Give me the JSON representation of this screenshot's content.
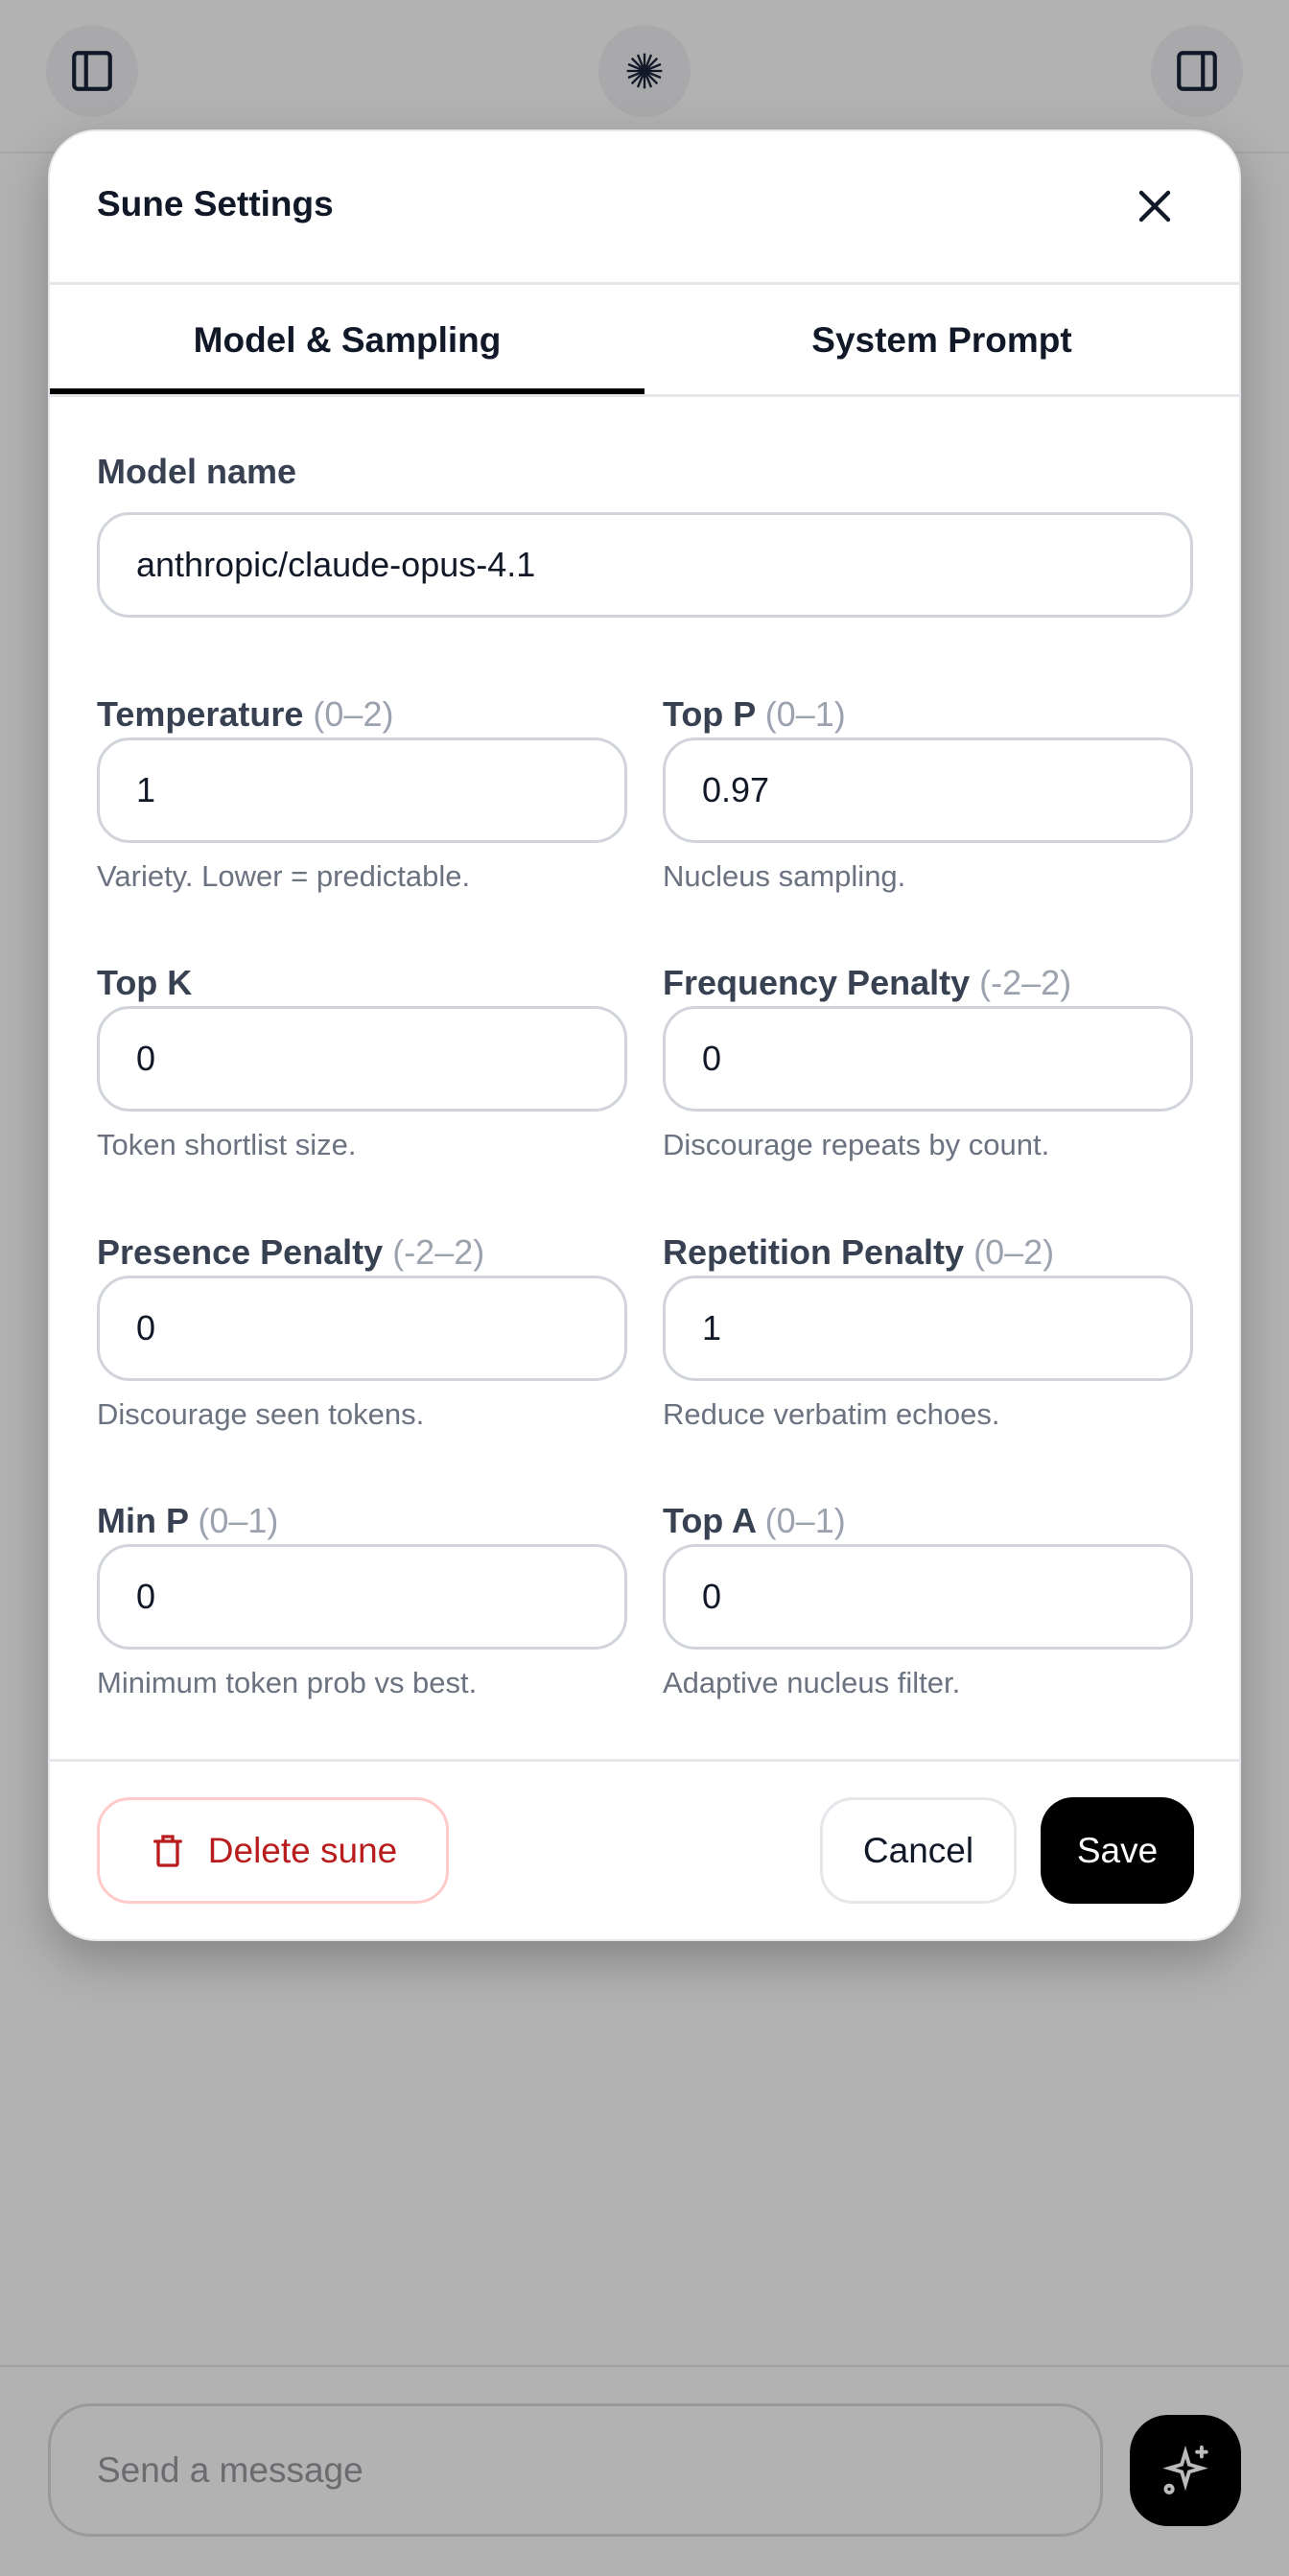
{
  "topbar": {
    "left_icon": "sidebar-left-icon",
    "center_icon": "burst-logo-icon",
    "right_icon": "sidebar-right-icon"
  },
  "modal": {
    "title": "Sune Settings",
    "tabs": [
      {
        "label": "Model & Sampling",
        "active": true
      },
      {
        "label": "System Prompt",
        "active": false
      }
    ],
    "model_name": {
      "label": "Model name",
      "value": "anthropic/claude-opus-4.1"
    },
    "fields": [
      {
        "label": "Temperature",
        "range": "(0–2)",
        "value": "1",
        "help": "Variety. Lower = predictable."
      },
      {
        "label": "Top P",
        "range": "(0–1)",
        "value": "0.97",
        "help": "Nucleus sampling."
      },
      {
        "label": "Top K",
        "range": "",
        "value": "0",
        "help": "Token shortlist size."
      },
      {
        "label": "Frequency Penalty",
        "range": "(-2–2)",
        "value": "0",
        "help": "Discourage repeats by count."
      },
      {
        "label": "Presence Penalty",
        "range": "(-2–2)",
        "value": "0",
        "help": "Discourage seen tokens."
      },
      {
        "label": "Repetition Penalty",
        "range": "(0–2)",
        "value": "1",
        "help": "Reduce verbatim echoes."
      },
      {
        "label": "Min P",
        "range": "(0–1)",
        "value": "0",
        "help": "Minimum token prob vs best."
      },
      {
        "label": "Top A",
        "range": "(0–1)",
        "value": "0",
        "help": "Adaptive nucleus filter."
      }
    ],
    "footer": {
      "delete_label": "Delete sune",
      "cancel_label": "Cancel",
      "save_label": "Save"
    }
  },
  "composer": {
    "placeholder": "Send a message"
  },
  "colors": {
    "danger": "#b91c1c",
    "primary": "#000000",
    "overlay": "#b2b2b2"
  }
}
